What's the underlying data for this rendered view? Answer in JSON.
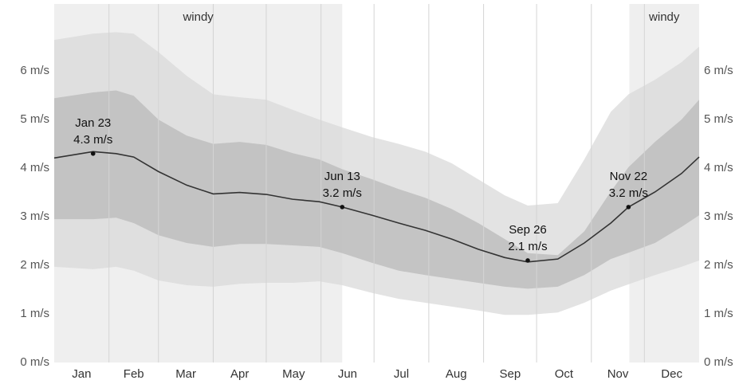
{
  "chart_data": {
    "type": "band-line",
    "xlim": [
      0,
      365
    ],
    "ylim": [
      0,
      7.38
    ],
    "yticks": [
      {
        "value": 0,
        "label": "0 m/s"
      },
      {
        "value": 1,
        "label": "1 m/s"
      },
      {
        "value": 2,
        "label": "2 m/s"
      },
      {
        "value": 3,
        "label": "3 m/s"
      },
      {
        "value": 4,
        "label": "4 m/s"
      },
      {
        "value": 5,
        "label": "5 m/s"
      },
      {
        "value": 6,
        "label": "6 m/s"
      }
    ],
    "xticks": [
      {
        "value": 15.5,
        "label": "Jan"
      },
      {
        "value": 45,
        "label": "Feb"
      },
      {
        "value": 74.5,
        "label": "Mar"
      },
      {
        "value": 105,
        "label": "Apr"
      },
      {
        "value": 135.5,
        "label": "May"
      },
      {
        "value": 166,
        "label": "Jun"
      },
      {
        "value": 196.5,
        "label": "Jul"
      },
      {
        "value": 227.5,
        "label": "Aug"
      },
      {
        "value": 258,
        "label": "Sep"
      },
      {
        "value": 288.5,
        "label": "Oct"
      },
      {
        "value": 319,
        "label": "Nov"
      },
      {
        "value": 349.5,
        "label": "Dec"
      }
    ],
    "xgrid": [
      31,
      59,
      90,
      120,
      151,
      181,
      212,
      243,
      273,
      304,
      334
    ],
    "grid": true,
    "regions": [
      {
        "label": "windy",
        "start": 0,
        "end": 163,
        "color": "#efefef"
      },
      {
        "label": "windy",
        "start": 325.5,
        "end": 365,
        "color": "#efefef"
      }
    ],
    "x": [
      0,
      22,
      35,
      45,
      59,
      75,
      90,
      105,
      120,
      135,
      150,
      163,
      180,
      195,
      210,
      225,
      240,
      255,
      268,
      285,
      300,
      315,
      325,
      340,
      355,
      365
    ],
    "bands": [
      {
        "color": "#dadada",
        "upper": [
          6.64,
          6.77,
          6.8,
          6.77,
          6.39,
          5.9,
          5.52,
          5.46,
          5.41,
          5.2,
          5.0,
          4.84,
          4.64,
          4.5,
          4.34,
          4.1,
          3.77,
          3.44,
          3.23,
          3.28,
          4.18,
          5.16,
          5.52,
          5.82,
          6.18,
          6.5
        ],
        "lower": [
          1.97,
          1.92,
          1.97,
          1.89,
          1.69,
          1.59,
          1.56,
          1.62,
          1.64,
          1.64,
          1.67,
          1.59,
          1.43,
          1.31,
          1.23,
          1.15,
          1.07,
          0.98,
          0.98,
          1.03,
          1.23,
          1.48,
          1.61,
          1.8,
          1.97,
          2.1
        ]
      },
      {
        "color": "#bababa",
        "upper": [
          5.44,
          5.56,
          5.6,
          5.49,
          5.0,
          4.67,
          4.5,
          4.54,
          4.48,
          4.31,
          4.18,
          3.98,
          3.77,
          3.57,
          3.39,
          3.16,
          2.87,
          2.54,
          2.25,
          2.21,
          2.7,
          3.52,
          4.02,
          4.54,
          5.0,
          5.41
        ],
        "lower": [
          2.95,
          2.95,
          2.98,
          2.87,
          2.62,
          2.46,
          2.38,
          2.44,
          2.44,
          2.41,
          2.38,
          2.25,
          2.05,
          1.89,
          1.8,
          1.72,
          1.64,
          1.56,
          1.52,
          1.56,
          1.8,
          2.13,
          2.26,
          2.46,
          2.79,
          3.03
        ]
      }
    ],
    "line": {
      "color": "#333333",
      "values": [
        4.21,
        4.34,
        4.3,
        4.23,
        3.93,
        3.65,
        3.47,
        3.5,
        3.46,
        3.36,
        3.31,
        3.2,
        3.03,
        2.87,
        2.72,
        2.54,
        2.33,
        2.16,
        2.07,
        2.13,
        2.46,
        2.87,
        3.2,
        3.51,
        3.89,
        4.23
      ]
    },
    "annotations": [
      {
        "x": 22,
        "date": "Jan 23",
        "value": 4.3,
        "value_label": "4.3 m/s"
      },
      {
        "x": 163,
        "date": "Jun 13",
        "value": 3.2,
        "value_label": "3.2 m/s"
      },
      {
        "x": 268,
        "date": "Sep 26",
        "value": 2.1,
        "value_label": "2.1 m/s"
      },
      {
        "x": 325,
        "date": "Nov 22",
        "value": 3.2,
        "value_label": "3.2 m/s"
      }
    ]
  }
}
